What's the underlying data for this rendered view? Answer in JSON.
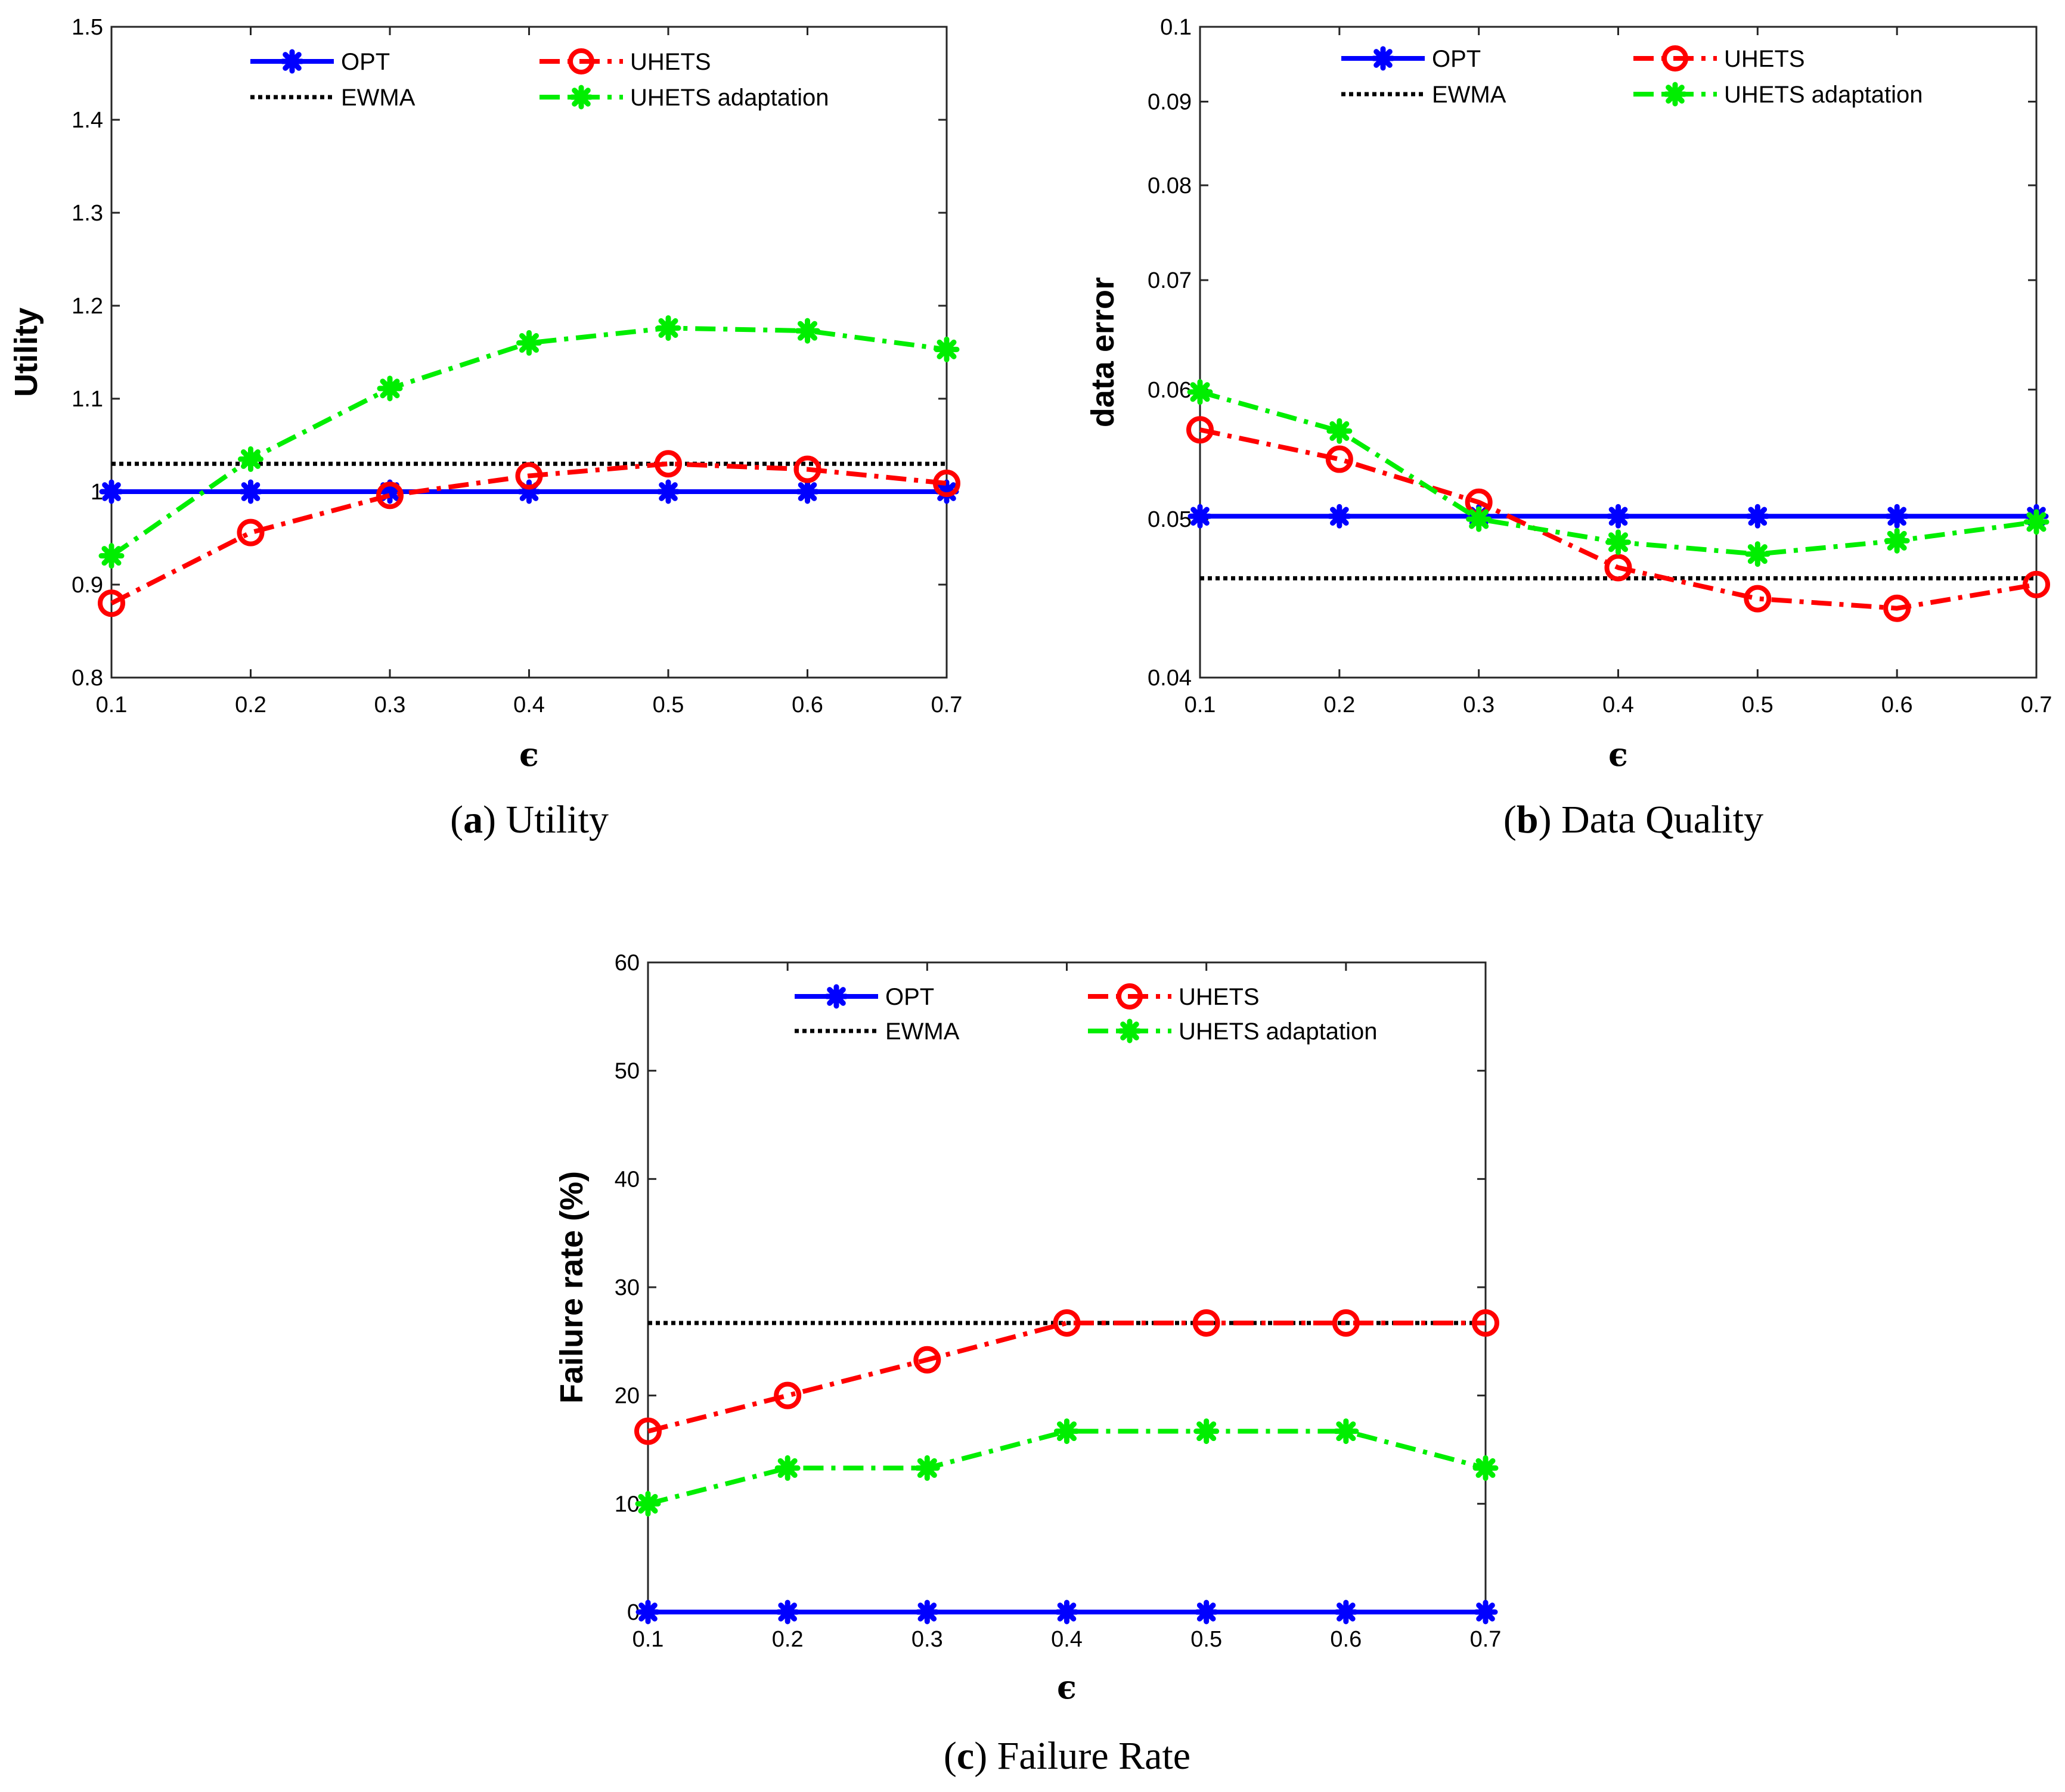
{
  "chart_data": [
    {
      "id": "a",
      "type": "line",
      "caption_letter": "a",
      "caption_text": "Utility",
      "xlabel": "ϵ",
      "ylabel": "Utility",
      "x": [
        0.1,
        0.2,
        0.3,
        0.4,
        0.5,
        0.6,
        0.7
      ],
      "x_tick_labels": [
        "0.1",
        "0.2",
        "0.3",
        "0.4",
        "0.5",
        "0.6",
        "0.7"
      ],
      "ylim": [
        0.8,
        1.5
      ],
      "y_ticks": [
        0.8,
        0.9,
        1,
        1.1,
        1.2,
        1.3,
        1.4,
        1.5
      ],
      "y_tick_labels": [
        "0.8",
        "0.9",
        "1",
        "1.1",
        "1.2",
        "1.3",
        "1.4",
        "1.5"
      ],
      "grid": false,
      "legend_placement": "top",
      "series": [
        {
          "name": "OPT",
          "color": "#0000ff",
          "style": "solid",
          "marker": "asterisk",
          "values": [
            1.0,
            1.0,
            1.0,
            1.0,
            1.0,
            1.0,
            1.0
          ]
        },
        {
          "name": "UHETS",
          "color": "#ff0000",
          "style": "dashdot",
          "marker": "circle",
          "values": [
            0.88,
            0.956,
            0.996,
            1.017,
            1.03,
            1.024,
            1.009
          ]
        },
        {
          "name": "EWMA",
          "color": "#000000",
          "style": "dotted",
          "marker": "none",
          "values": [
            1.03,
            1.03,
            1.03,
            1.03,
            1.03,
            1.03,
            1.03
          ]
        },
        {
          "name": "UHETS adaptation",
          "color": "#00ee00",
          "style": "dashdot",
          "marker": "asterisk",
          "values": [
            0.931,
            1.035,
            1.111,
            1.16,
            1.176,
            1.173,
            1.153
          ]
        }
      ]
    },
    {
      "id": "b",
      "type": "line",
      "caption_letter": "b",
      "caption_text": "Data Quality",
      "xlabel": "ϵ",
      "ylabel": "data error",
      "x": [
        0.1,
        0.2,
        0.3,
        0.4,
        0.5,
        0.6,
        0.7
      ],
      "x_tick_labels": [
        "0.1",
        "0.2",
        "0.3",
        "0.4",
        "0.5",
        "0.6",
        "0.7"
      ],
      "y_scale": "log",
      "ylim": [
        0.04,
        0.1
      ],
      "y_ticks": [
        0.04,
        0.05,
        0.06,
        0.07,
        0.08,
        0.09,
        0.1
      ],
      "y_tick_labels": [
        "0.04",
        "0.05",
        "0.06",
        "0.07",
        "0.08",
        "0.09",
        "0.1"
      ],
      "grid": false,
      "legend_placement": "top",
      "series": [
        {
          "name": "OPT",
          "color": "#0000ff",
          "style": "solid",
          "marker": "asterisk",
          "values": [
            0.0502,
            0.0502,
            0.0502,
            0.0502,
            0.0502,
            0.0502,
            0.0502
          ]
        },
        {
          "name": "UHETS",
          "color": "#ff0000",
          "style": "dashdot",
          "marker": "circle",
          "values": [
            0.0567,
            0.0544,
            0.0512,
            0.0467,
            0.0447,
            0.0441,
            0.0456
          ]
        },
        {
          "name": "EWMA",
          "color": "#000000",
          "style": "dotted",
          "marker": "none",
          "values": [
            0.046,
            0.046,
            0.046,
            0.046,
            0.046,
            0.046,
            0.046
          ]
        },
        {
          "name": "UHETS adaptation",
          "color": "#00ee00",
          "style": "dashdot",
          "marker": "asterisk",
          "values": [
            0.0598,
            0.0566,
            0.05,
            0.0484,
            0.0476,
            0.0485,
            0.0498
          ]
        }
      ]
    },
    {
      "id": "c",
      "type": "line",
      "caption_letter": "c",
      "caption_text": "Failure Rate",
      "xlabel": "ϵ",
      "ylabel": "Failure rate (%)",
      "x": [
        0.1,
        0.2,
        0.3,
        0.4,
        0.5,
        0.6,
        0.7
      ],
      "x_tick_labels": [
        "0.1",
        "0.2",
        "0.3",
        "0.4",
        "0.5",
        "0.6",
        "0.7"
      ],
      "ylim": [
        0,
        60
      ],
      "y_ticks": [
        0,
        10,
        20,
        30,
        40,
        50,
        60
      ],
      "y_tick_labels": [
        "0",
        "10",
        "20",
        "30",
        "40",
        "50",
        "60"
      ],
      "grid": false,
      "legend_placement": "top",
      "series": [
        {
          "name": "OPT",
          "color": "#0000ff",
          "style": "solid",
          "marker": "asterisk",
          "values": [
            0,
            0,
            0,
            0,
            0,
            0,
            0
          ]
        },
        {
          "name": "UHETS",
          "color": "#ff0000",
          "style": "dashdot",
          "marker": "circle",
          "values": [
            16.7,
            20.0,
            23.3,
            26.7,
            26.7,
            26.7,
            26.7
          ]
        },
        {
          "name": "EWMA",
          "color": "#000000",
          "style": "dotted",
          "marker": "none",
          "values": [
            26.7,
            26.7,
            26.7,
            26.7,
            26.7,
            26.7,
            26.7
          ]
        },
        {
          "name": "UHETS adaptation",
          "color": "#00ee00",
          "style": "dashdot",
          "marker": "asterisk",
          "values": [
            10.0,
            13.3,
            13.3,
            16.7,
            16.7,
            16.7,
            13.3
          ]
        }
      ]
    }
  ]
}
